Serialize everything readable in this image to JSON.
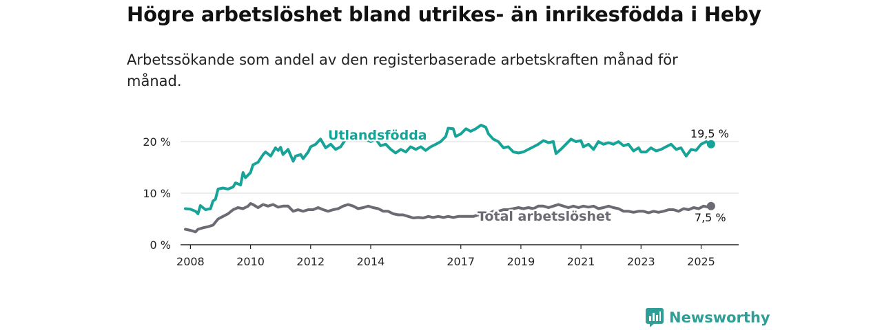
{
  "title": "Högre arbetslöshet bland utrikes- än inrikesfödda i Heby",
  "subtitle": "Arbetssökande som andel av den registerbaserade arbetskraften månad för månad.",
  "brand": {
    "name": "Newsworthy",
    "icon": "newsworthy-logo-icon",
    "color": "#2e9e96"
  },
  "chart_data": {
    "type": "line",
    "y_ticks": [
      0,
      10,
      20
    ],
    "y_tick_labels": [
      "0 %",
      "10 %",
      "20 %"
    ],
    "x_ticks": [
      2008,
      2010,
      2012,
      2014,
      2017,
      2019,
      2021,
      2023,
      2025
    ],
    "x_tick_labels": [
      "2008",
      "2010",
      "2012",
      "2014",
      "2017",
      "2019",
      "2021",
      "2023",
      "2025"
    ],
    "xlim": [
      2007.67,
      2026.25
    ],
    "ylim": [
      0,
      24
    ],
    "grid": true,
    "series": [
      {
        "name": "Utlandsfödda",
        "color": "#17a398",
        "end_label": "19,5 %",
        "points": [
          [
            2007.83,
            7.0
          ],
          [
            2008.0,
            6.9
          ],
          [
            2008.17,
            6.5
          ],
          [
            2008.25,
            6.0
          ],
          [
            2008.33,
            7.6
          ],
          [
            2008.5,
            6.8
          ],
          [
            2008.67,
            7.0
          ],
          [
            2008.75,
            8.5
          ],
          [
            2008.83,
            8.8
          ],
          [
            2008.92,
            10.8
          ],
          [
            2009.08,
            11.0
          ],
          [
            2009.25,
            10.8
          ],
          [
            2009.42,
            11.2
          ],
          [
            2009.5,
            12.0
          ],
          [
            2009.67,
            11.6
          ],
          [
            2009.75,
            14.0
          ],
          [
            2009.83,
            13.0
          ],
          [
            2010.0,
            14.0
          ],
          [
            2010.08,
            15.5
          ],
          [
            2010.25,
            16.0
          ],
          [
            2010.42,
            17.5
          ],
          [
            2010.5,
            18.0
          ],
          [
            2010.67,
            17.2
          ],
          [
            2010.83,
            18.8
          ],
          [
            2010.92,
            18.3
          ],
          [
            2011.0,
            18.9
          ],
          [
            2011.08,
            17.5
          ],
          [
            2011.25,
            18.5
          ],
          [
            2011.42,
            16.2
          ],
          [
            2011.5,
            17.2
          ],
          [
            2011.67,
            17.5
          ],
          [
            2011.75,
            16.7
          ],
          [
            2011.92,
            18.0
          ],
          [
            2012.0,
            19.0
          ],
          [
            2012.17,
            19.5
          ],
          [
            2012.33,
            20.5
          ],
          [
            2012.5,
            18.8
          ],
          [
            2012.67,
            19.5
          ],
          [
            2012.83,
            18.5
          ],
          [
            2013.0,
            19.0
          ],
          [
            2013.17,
            20.5
          ],
          [
            2013.33,
            21.5
          ],
          [
            2013.5,
            21.0
          ],
          [
            2013.67,
            20.5
          ],
          [
            2013.83,
            20.5
          ],
          [
            2014.0,
            20.0
          ],
          [
            2014.17,
            20.5
          ],
          [
            2014.33,
            19.2
          ],
          [
            2014.5,
            19.5
          ],
          [
            2014.67,
            18.5
          ],
          [
            2014.83,
            17.8
          ],
          [
            2015.0,
            18.5
          ],
          [
            2015.17,
            18.0
          ],
          [
            2015.33,
            19.0
          ],
          [
            2015.5,
            18.5
          ],
          [
            2015.67,
            19.0
          ],
          [
            2015.83,
            18.3
          ],
          [
            2016.0,
            19.0
          ],
          [
            2016.17,
            19.5
          ],
          [
            2016.33,
            20.0
          ],
          [
            2016.5,
            21.0
          ],
          [
            2016.58,
            22.6
          ],
          [
            2016.75,
            22.5
          ],
          [
            2016.83,
            21.0
          ],
          [
            2017.0,
            21.5
          ],
          [
            2017.17,
            22.5
          ],
          [
            2017.33,
            22.0
          ],
          [
            2017.5,
            22.5
          ],
          [
            2017.67,
            23.2
          ],
          [
            2017.83,
            22.8
          ],
          [
            2017.92,
            21.5
          ],
          [
            2018.08,
            20.5
          ],
          [
            2018.25,
            20.0
          ],
          [
            2018.42,
            18.8
          ],
          [
            2018.58,
            19.0
          ],
          [
            2018.75,
            18.0
          ],
          [
            2018.92,
            17.8
          ],
          [
            2019.08,
            18.0
          ],
          [
            2019.25,
            18.5
          ],
          [
            2019.42,
            19.0
          ],
          [
            2019.58,
            19.5
          ],
          [
            2019.75,
            20.2
          ],
          [
            2019.92,
            19.8
          ],
          [
            2020.08,
            20.0
          ],
          [
            2020.17,
            17.7
          ],
          [
            2020.33,
            18.5
          ],
          [
            2020.5,
            19.5
          ],
          [
            2020.67,
            20.5
          ],
          [
            2020.83,
            20.0
          ],
          [
            2021.0,
            20.2
          ],
          [
            2021.08,
            19.0
          ],
          [
            2021.25,
            19.5
          ],
          [
            2021.42,
            18.5
          ],
          [
            2021.58,
            20.0
          ],
          [
            2021.75,
            19.5
          ],
          [
            2021.92,
            19.8
          ],
          [
            2022.08,
            19.5
          ],
          [
            2022.25,
            20.0
          ],
          [
            2022.42,
            19.2
          ],
          [
            2022.58,
            19.5
          ],
          [
            2022.75,
            18.2
          ],
          [
            2022.92,
            18.8
          ],
          [
            2023.0,
            18.0
          ],
          [
            2023.17,
            18.0
          ],
          [
            2023.33,
            18.8
          ],
          [
            2023.5,
            18.2
          ],
          [
            2023.67,
            18.5
          ],
          [
            2023.83,
            19.0
          ],
          [
            2024.0,
            19.5
          ],
          [
            2024.17,
            18.5
          ],
          [
            2024.33,
            18.8
          ],
          [
            2024.5,
            17.2
          ],
          [
            2024.67,
            18.5
          ],
          [
            2024.83,
            18.3
          ],
          [
            2025.0,
            19.5
          ],
          [
            2025.17,
            20.0
          ],
          [
            2025.33,
            19.5
          ]
        ]
      },
      {
        "name": "Total arbetslöshet",
        "color": "#6b6b73",
        "end_label": "7,5 %",
        "points": [
          [
            2007.83,
            3.0
          ],
          [
            2008.0,
            2.8
          ],
          [
            2008.17,
            2.5
          ],
          [
            2008.25,
            3.0
          ],
          [
            2008.42,
            3.3
          ],
          [
            2008.58,
            3.5
          ],
          [
            2008.75,
            3.8
          ],
          [
            2008.92,
            5.0
          ],
          [
            2009.08,
            5.5
          ],
          [
            2009.25,
            6.0
          ],
          [
            2009.42,
            6.8
          ],
          [
            2009.58,
            7.2
          ],
          [
            2009.75,
            7.0
          ],
          [
            2009.92,
            7.5
          ],
          [
            2010.0,
            8.0
          ],
          [
            2010.08,
            7.8
          ],
          [
            2010.25,
            7.2
          ],
          [
            2010.42,
            7.8
          ],
          [
            2010.58,
            7.5
          ],
          [
            2010.75,
            7.8
          ],
          [
            2010.92,
            7.3
          ],
          [
            2011.08,
            7.5
          ],
          [
            2011.25,
            7.5
          ],
          [
            2011.42,
            6.5
          ],
          [
            2011.58,
            6.8
          ],
          [
            2011.75,
            6.5
          ],
          [
            2011.92,
            6.8
          ],
          [
            2012.08,
            6.8
          ],
          [
            2012.25,
            7.2
          ],
          [
            2012.42,
            6.8
          ],
          [
            2012.58,
            6.5
          ],
          [
            2012.75,
            6.8
          ],
          [
            2012.92,
            7.0
          ],
          [
            2013.08,
            7.5
          ],
          [
            2013.25,
            7.8
          ],
          [
            2013.42,
            7.5
          ],
          [
            2013.58,
            7.0
          ],
          [
            2013.75,
            7.2
          ],
          [
            2013.92,
            7.5
          ],
          [
            2014.08,
            7.2
          ],
          [
            2014.25,
            7.0
          ],
          [
            2014.42,
            6.5
          ],
          [
            2014.58,
            6.5
          ],
          [
            2014.75,
            6.0
          ],
          [
            2014.92,
            5.8
          ],
          [
            2015.08,
            5.8
          ],
          [
            2015.25,
            5.5
          ],
          [
            2015.42,
            5.2
          ],
          [
            2015.58,
            5.3
          ],
          [
            2015.75,
            5.2
          ],
          [
            2015.92,
            5.5
          ],
          [
            2016.08,
            5.3
          ],
          [
            2016.25,
            5.5
          ],
          [
            2016.42,
            5.3
          ],
          [
            2016.58,
            5.5
          ],
          [
            2016.75,
            5.3
          ],
          [
            2016.92,
            5.5
          ],
          [
            2017.08,
            5.5
          ],
          [
            2017.25,
            5.5
          ],
          [
            2017.42,
            5.5
          ],
          [
            2017.58,
            5.8
          ],
          [
            2017.75,
            5.8
          ],
          [
            2017.92,
            6.0
          ],
          [
            2018.08,
            6.5
          ],
          [
            2018.25,
            6.5
          ],
          [
            2018.42,
            6.8
          ],
          [
            2018.58,
            6.8
          ],
          [
            2018.75,
            7.0
          ],
          [
            2018.92,
            7.2
          ],
          [
            2019.08,
            7.0
          ],
          [
            2019.25,
            7.2
          ],
          [
            2019.42,
            7.0
          ],
          [
            2019.58,
            7.5
          ],
          [
            2019.75,
            7.5
          ],
          [
            2019.92,
            7.2
          ],
          [
            2020.08,
            7.5
          ],
          [
            2020.25,
            7.8
          ],
          [
            2020.42,
            7.5
          ],
          [
            2020.58,
            7.2
          ],
          [
            2020.75,
            7.5
          ],
          [
            2020.92,
            7.2
          ],
          [
            2021.08,
            7.5
          ],
          [
            2021.25,
            7.3
          ],
          [
            2021.42,
            7.5
          ],
          [
            2021.58,
            7.0
          ],
          [
            2021.75,
            7.2
          ],
          [
            2021.92,
            7.5
          ],
          [
            2022.08,
            7.2
          ],
          [
            2022.25,
            7.0
          ],
          [
            2022.42,
            6.5
          ],
          [
            2022.58,
            6.5
          ],
          [
            2022.75,
            6.3
          ],
          [
            2022.92,
            6.5
          ],
          [
            2023.08,
            6.5
          ],
          [
            2023.25,
            6.2
          ],
          [
            2023.42,
            6.5
          ],
          [
            2023.58,
            6.3
          ],
          [
            2023.75,
            6.5
          ],
          [
            2023.92,
            6.8
          ],
          [
            2024.08,
            6.8
          ],
          [
            2024.25,
            6.5
          ],
          [
            2024.42,
            7.0
          ],
          [
            2024.58,
            6.8
          ],
          [
            2024.75,
            7.2
          ],
          [
            2024.92,
            7.0
          ],
          [
            2025.08,
            7.5
          ],
          [
            2025.25,
            7.3
          ],
          [
            2025.33,
            7.5
          ]
        ]
      }
    ]
  }
}
